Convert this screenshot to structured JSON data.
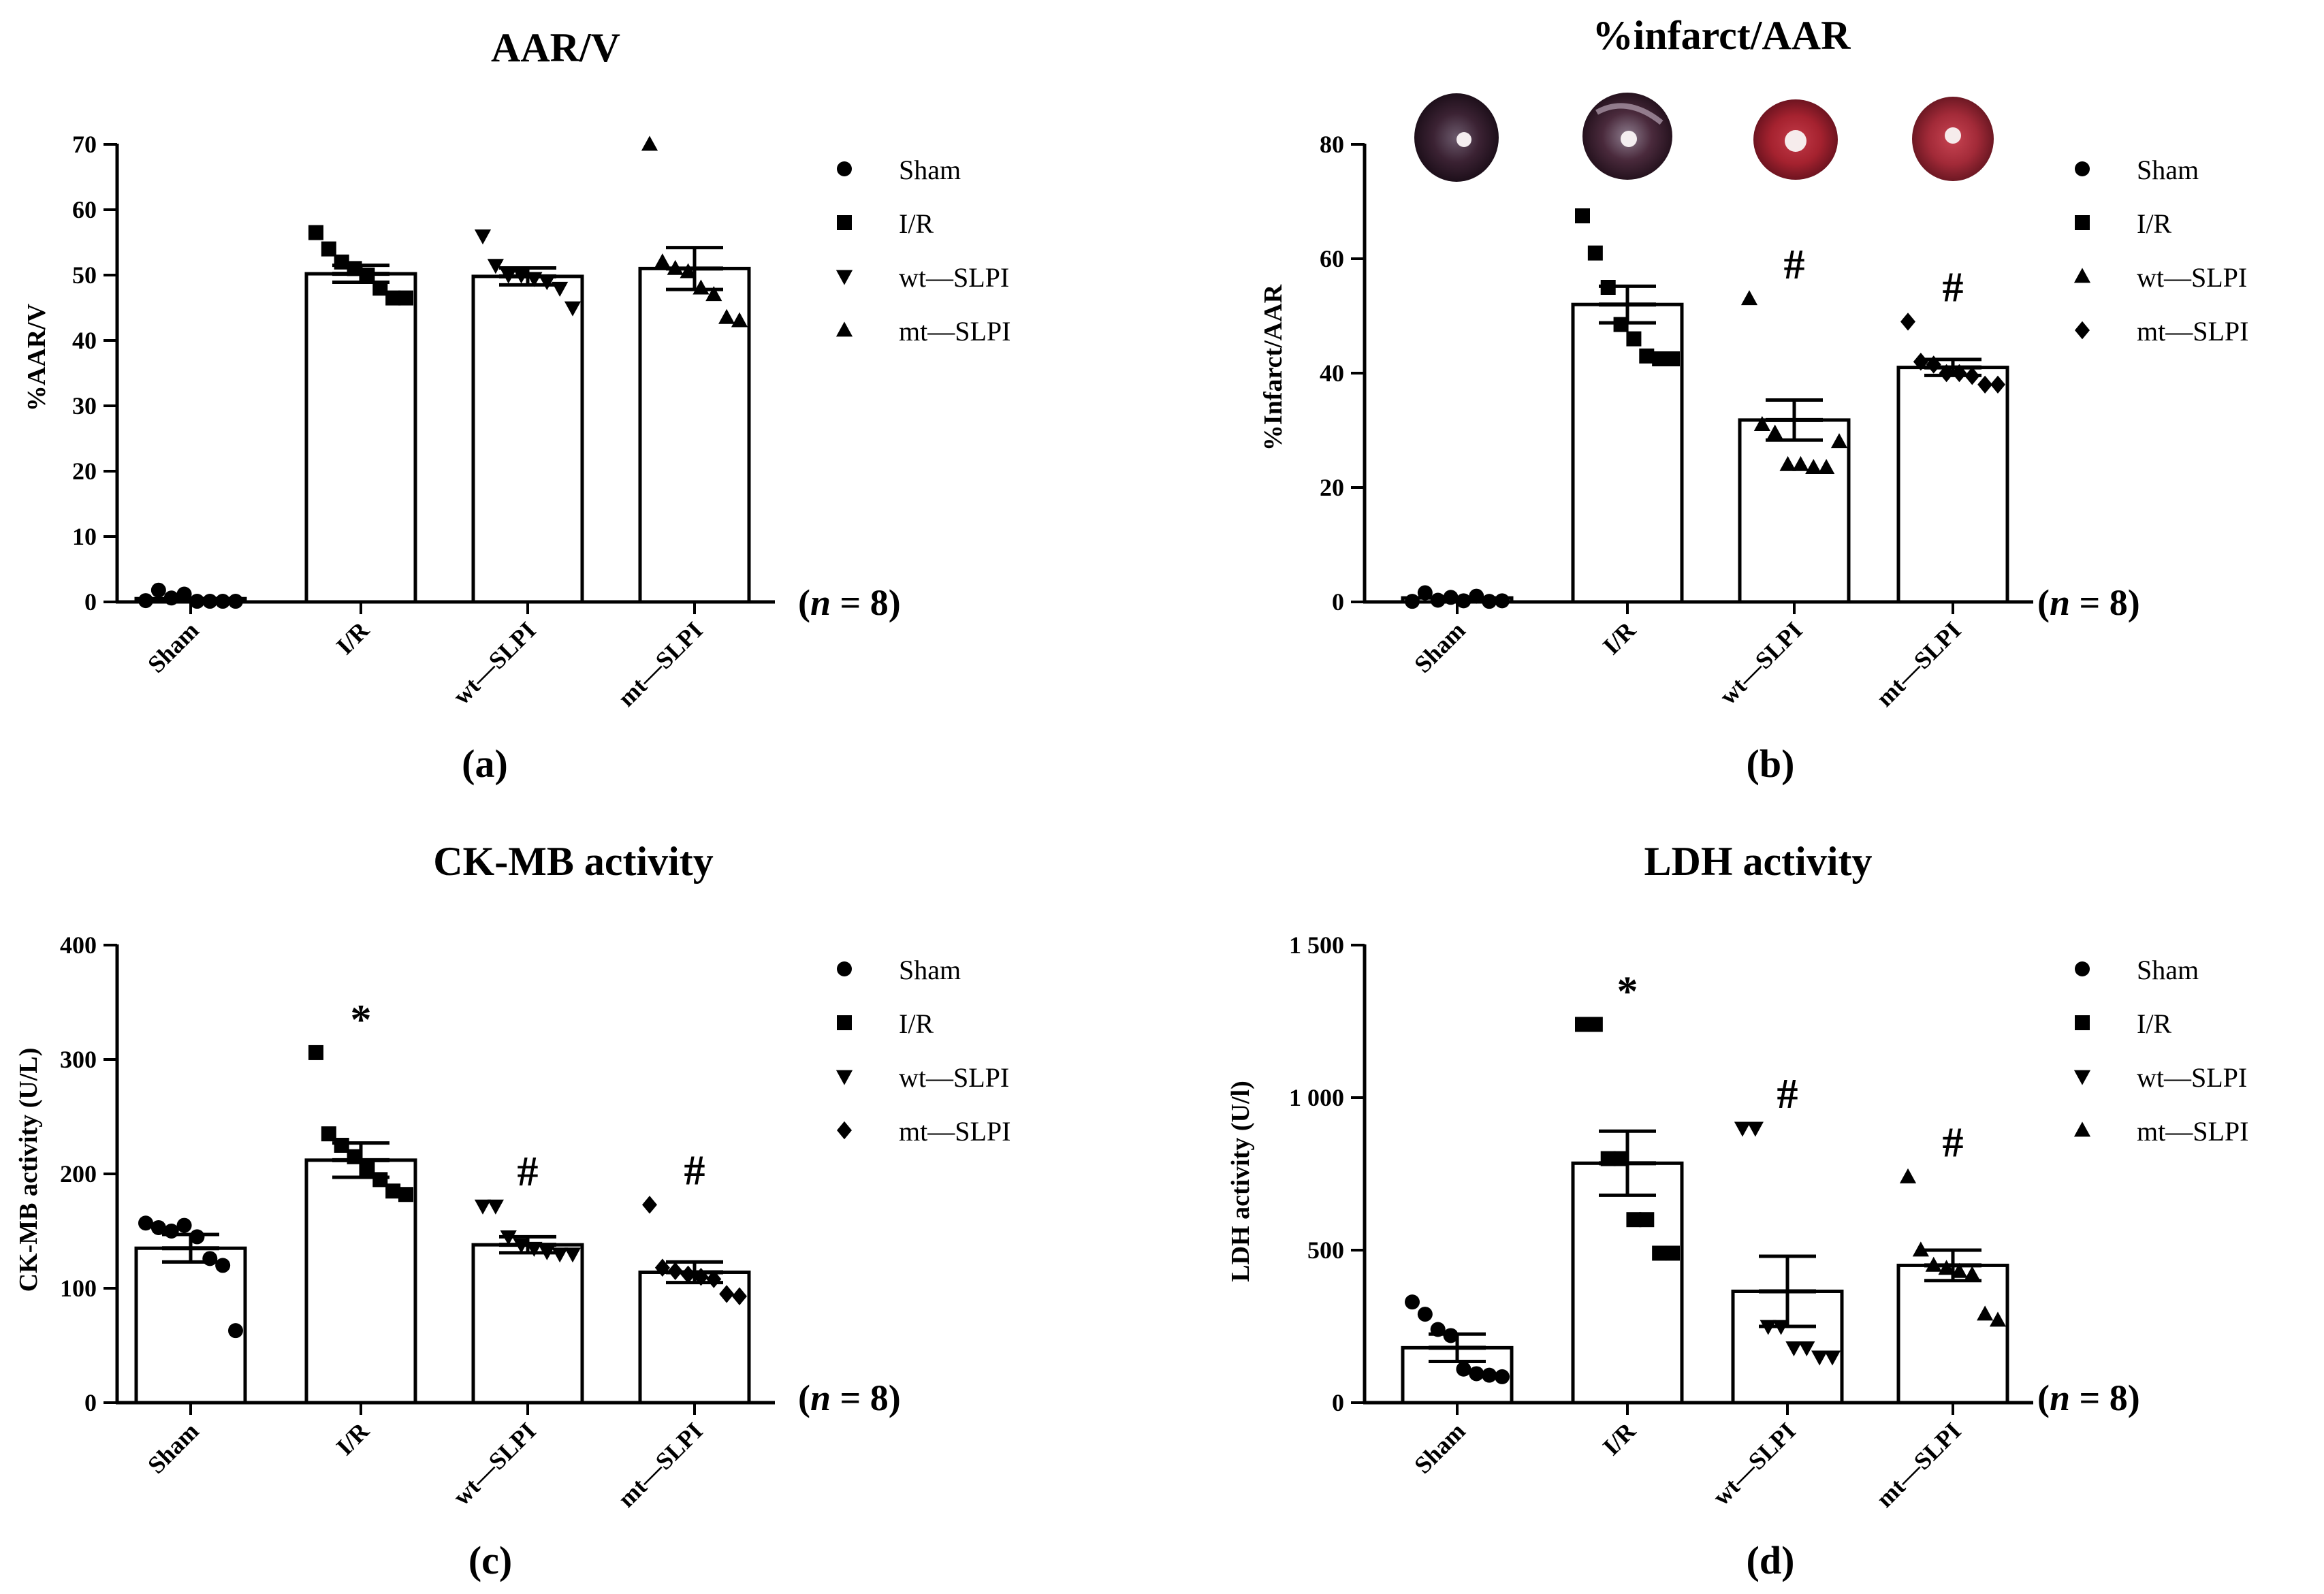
{
  "chart_data": [
    {
      "type": "bar",
      "title": "AAR/V",
      "ylabel": "%AAR/V",
      "xlabel": "",
      "panel_label": "(a)",
      "n_label_prefix": "(",
      "n_label_var": "n",
      "n_label_suffix": " = 8)",
      "categories": [
        "Sham",
        "I/R",
        "wt—SLPI",
        "mt—SLPI"
      ],
      "legend": [
        {
          "label": "Sham",
          "marker": "circle"
        },
        {
          "label": "I/R",
          "marker": "square"
        },
        {
          "label": "wt—SLPI",
          "marker": "triangle-down"
        },
        {
          "label": "mt—SLPI",
          "marker": "triangle-up"
        }
      ],
      "values": [
        0.5,
        50.2,
        49.8,
        51.0
      ],
      "sem": [
        0.3,
        1.3,
        1.3,
        3.2
      ],
      "points": [
        [
          0.2,
          1.8,
          0.6,
          1.2,
          0.1,
          0.1,
          0.1,
          0.1
        ],
        [
          56.5,
          54.0,
          52.0,
          51.0,
          50.0,
          48.0,
          46.5,
          46.5
        ],
        [
          56.0,
          51.5,
          50.0,
          50.0,
          49.5,
          49.0,
          48.0,
          45.0
        ],
        [
          70.0,
          52.0,
          51.0,
          50.5,
          48.0,
          47.0,
          43.5,
          43.0
        ]
      ],
      "ylim": [
        0,
        70
      ],
      "yticks": [
        "0",
        "10",
        "20",
        "30",
        "40",
        "50",
        "60",
        "70"
      ],
      "ytick_values": [
        0,
        10,
        20,
        30,
        40,
        50,
        60,
        70
      ],
      "annotations": [
        "",
        "",
        "",
        ""
      ]
    },
    {
      "type": "bar",
      "title": "%infarct/AAR",
      "ylabel": "%Infarct/AAR",
      "xlabel": "",
      "panel_label": "(b)",
      "n_label_prefix": "(",
      "n_label_var": "n",
      "n_label_suffix": " = 8)",
      "categories": [
        "Sham",
        "I/R",
        "wt—SLPI",
        "mt—SLPI"
      ],
      "legend": [
        {
          "label": "Sham",
          "marker": "circle"
        },
        {
          "label": "I/R",
          "marker": "square"
        },
        {
          "label": "wt—SLPI",
          "marker": "triangle-up"
        },
        {
          "label": "mt—SLPI",
          "marker": "diamond"
        }
      ],
      "values": [
        0.7,
        52.0,
        31.8,
        41.0
      ],
      "sem": [
        0.3,
        3.2,
        3.5,
        1.4
      ],
      "points": [
        [
          0.1,
          1.6,
          0.3,
          0.8,
          0.2,
          1.0,
          0.1,
          0.2
        ],
        [
          67.5,
          61.0,
          55.0,
          48.5,
          46.0,
          43.0,
          42.5,
          42.5
        ],
        [
          53.0,
          31.0,
          29.5,
          24.0,
          24.0,
          23.5,
          23.5,
          28.0
        ],
        [
          49.0,
          42.0,
          41.5,
          40.0,
          40.0,
          39.5,
          38.0,
          38.0
        ]
      ],
      "ylim": [
        0,
        80
      ],
      "yticks": [
        "0",
        "20",
        "40",
        "60",
        "80"
      ],
      "ytick_values": [
        0,
        20,
        40,
        60,
        80
      ],
      "annotations": [
        "",
        "",
        "#",
        "#"
      ],
      "heart_images": 4
    },
    {
      "type": "bar",
      "title": "CK-MB activity",
      "ylabel": "CK-MB activity (U/L)",
      "xlabel": "",
      "panel_label": "(c)",
      "n_label_prefix": "(",
      "n_label_var": "n",
      "n_label_suffix": " = 8)",
      "categories": [
        "Sham",
        "I/R",
        "wt—SLPI",
        "mt—SLPI"
      ],
      "legend": [
        {
          "label": "Sham",
          "marker": "circle"
        },
        {
          "label": "I/R",
          "marker": "square"
        },
        {
          "label": "wt—SLPI",
          "marker": "triangle-down"
        },
        {
          "label": "mt—SLPI",
          "marker": "diamond"
        }
      ],
      "values": [
        135,
        212,
        138,
        114
      ],
      "sem": [
        12,
        15,
        7,
        9
      ],
      "points": [
        [
          157,
          153,
          150,
          155,
          145,
          126,
          120,
          63
        ],
        [
          306,
          235,
          225,
          215,
          205,
          195,
          185,
          182
        ],
        [
          172,
          172,
          145,
          138,
          135,
          132,
          130,
          130
        ],
        [
          173,
          118,
          115,
          112,
          110,
          108,
          95,
          93
        ]
      ],
      "ylim": [
        0,
        400
      ],
      "yticks": [
        "0",
        "100",
        "200",
        "300",
        "400"
      ],
      "ytick_values": [
        0,
        100,
        200,
        300,
        400
      ],
      "annotations": [
        "",
        "*",
        "#",
        "#"
      ]
    },
    {
      "type": "bar",
      "title": "LDH activity",
      "ylabel": "LDH activity (U/l)",
      "xlabel": "",
      "panel_label": "(d)",
      "n_label_prefix": "(",
      "n_label_var": "n",
      "n_label_suffix": " = 8)",
      "categories": [
        "Sham",
        "I/R",
        "wt—SLPI",
        "mt—SLPI"
      ],
      "legend": [
        {
          "label": "Sham",
          "marker": "circle"
        },
        {
          "label": "I/R",
          "marker": "square"
        },
        {
          "label": "wt—SLPI",
          "marker": "triangle-down"
        },
        {
          "label": "mt—SLPI",
          "marker": "triangle-up"
        }
      ],
      "values": [
        180,
        785,
        365,
        450
      ],
      "sem": [
        45,
        105,
        115,
        50
      ],
      "points": [
        [
          330,
          290,
          240,
          220,
          110,
          95,
          90,
          85
        ],
        [
          1240,
          1240,
          800,
          800,
          600,
          600,
          490,
          490
        ],
        [
          900,
          900,
          250,
          250,
          180,
          180,
          150,
          150
        ],
        [
          740,
          500,
          450,
          440,
          430,
          420,
          290,
          270
        ]
      ],
      "ylim": [
        0,
        1500
      ],
      "yticks": [
        "0",
        "500",
        "1 000",
        "1 500"
      ],
      "ytick_values": [
        0,
        500,
        1000,
        1500
      ],
      "annotations": [
        "",
        "*",
        "#",
        "#"
      ]
    }
  ]
}
